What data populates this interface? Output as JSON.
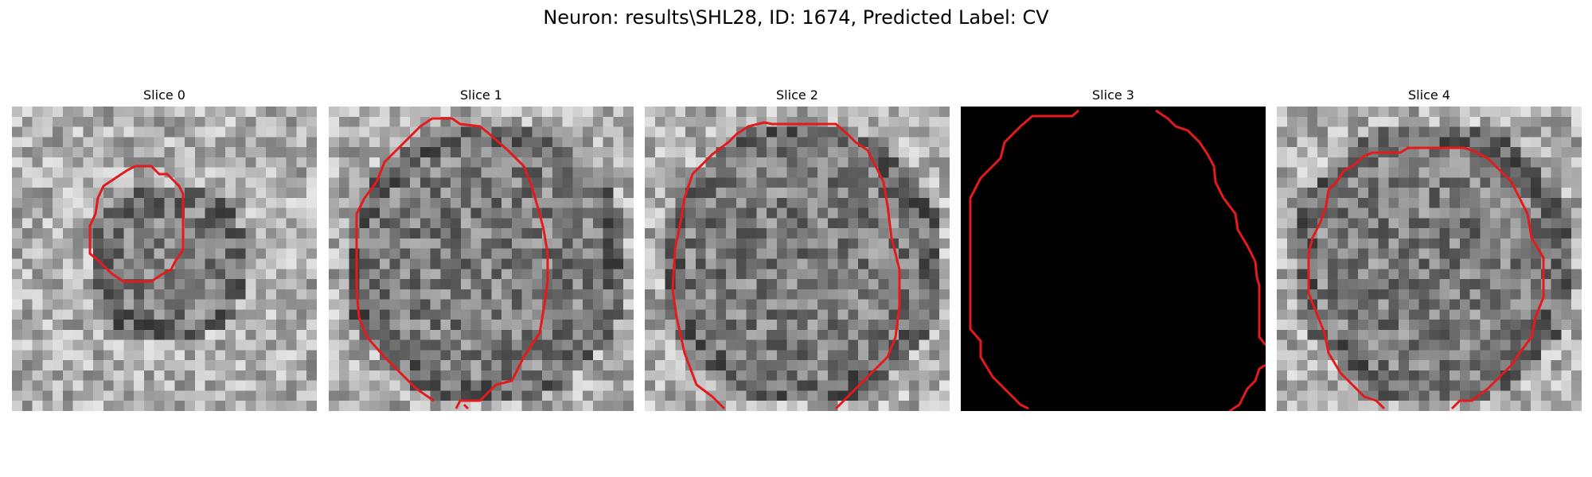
{
  "figure": {
    "title": "Neuron: results\\SHL28, ID: 1674, Predicted Label: CV"
  },
  "panels": [
    {
      "title": "Slice 0"
    },
    {
      "title": "Slice 1"
    },
    {
      "title": "Slice 2"
    },
    {
      "title": "Slice 3"
    },
    {
      "title": "Slice 4"
    }
  ],
  "colors": {
    "contour": "#e41a1c",
    "background": "#ffffff",
    "empty_slice": "#000000"
  }
}
